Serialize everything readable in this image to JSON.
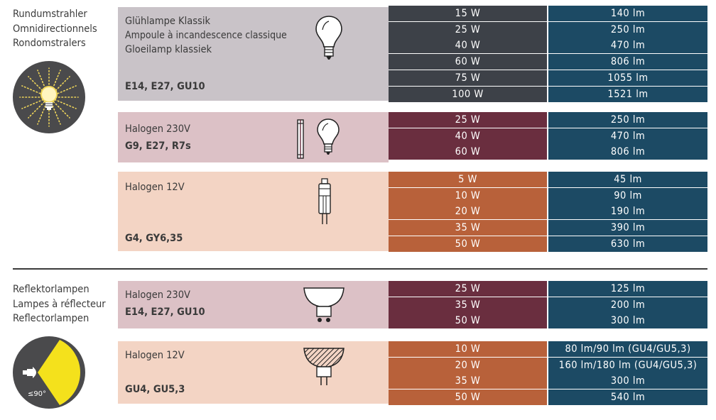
{
  "sections": [
    {
      "lines": [
        "Rundumstrahler",
        "Omnidirectionnels",
        "Rondomstralers"
      ]
    },
    {
      "lines": [
        "Reflektorlampen",
        "Lampes à réflecteur",
        "Reflectorlampen"
      ]
    }
  ],
  "badge2_label": "≤90°",
  "groups": [
    {
      "title_lines": [
        "Glühlampe Klassik",
        "Ampoule à incandescence classique",
        "Gloeilamp klassiek"
      ],
      "socket": "E14, E27, GU10",
      "bg": "#c9c3c8",
      "watt_bg": "#3d4148",
      "rows": [
        {
          "w": "15 W",
          "lm": "140 lm"
        },
        {
          "w": "25 W",
          "lm": "250 lm"
        },
        {
          "w": "40 W",
          "lm": "470 lm"
        },
        {
          "w": "60 W",
          "lm": "806 lm"
        },
        {
          "w": "75 W",
          "lm": "1055 lm"
        },
        {
          "w": "100 W",
          "lm": "1521 lm"
        }
      ]
    },
    {
      "title_lines": [
        "Halogen 230V"
      ],
      "socket": "G9, E27, R7s",
      "bg": "#dcc1c6",
      "watt_bg": "#6a2e3f",
      "rows": [
        {
          "w": "25 W",
          "lm": "250 lm"
        },
        {
          "w": "40 W",
          "lm": "470 lm"
        },
        {
          "w": "60 W",
          "lm": "806 lm"
        }
      ]
    },
    {
      "title_lines": [
        "Halogen 12V"
      ],
      "socket": "G4, GY6,35",
      "bg": "#f3d4c4",
      "watt_bg": "#b8613a",
      "rows": [
        {
          "w": "5 W",
          "lm": "45 lm"
        },
        {
          "w": "10 W",
          "lm": "90 lm"
        },
        {
          "w": "20 W",
          "lm": "190 lm"
        },
        {
          "w": "35 W",
          "lm": "390 lm"
        },
        {
          "w": "50 W",
          "lm": "630 lm"
        }
      ]
    },
    {
      "title_lines": [
        "Halogen 230V"
      ],
      "socket": "E14, E27, GU10",
      "bg": "#dcc1c6",
      "watt_bg": "#6a2e3f",
      "rows": [
        {
          "w": "25 W",
          "lm": "125 lm"
        },
        {
          "w": "35 W",
          "lm": "200 lm"
        },
        {
          "w": "50 W",
          "lm": "300 lm"
        }
      ]
    },
    {
      "title_lines": [
        "Halogen 12V"
      ],
      "socket": "GU4, GU5,3",
      "bg": "#f3d4c4",
      "watt_bg": "#b8613a",
      "rows": [
        {
          "w": "10 W",
          "lm": "80 lm/90 lm (GU4/GU5,3)"
        },
        {
          "w": "20 W",
          "lm": "160 lm/180 lm (GU4/GU5,3)"
        },
        {
          "w": "35 W",
          "lm": "300 lm"
        },
        {
          "w": "50 W",
          "lm": "540 lm"
        }
      ]
    }
  ]
}
